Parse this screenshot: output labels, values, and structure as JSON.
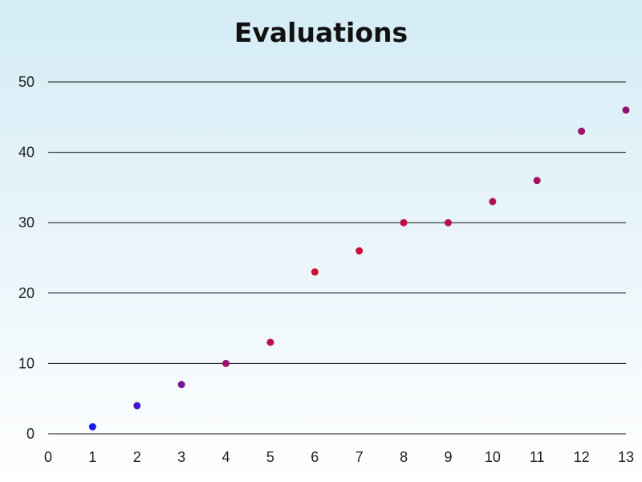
{
  "chart_data": {
    "type": "scatter",
    "title": "Evaluations",
    "xlabel": "",
    "ylabel": "",
    "xlim": [
      0,
      13
    ],
    "ylim": [
      0,
      50
    ],
    "x_ticks": [
      0,
      1,
      2,
      3,
      4,
      5,
      6,
      7,
      8,
      9,
      10,
      11,
      12,
      13
    ],
    "y_ticks": [
      0,
      10,
      20,
      30,
      40,
      50
    ],
    "grid": "horizontal",
    "series": [
      {
        "x": [
          1,
          2,
          3,
          4,
          5,
          6,
          7,
          8,
          9,
          10,
          11,
          12,
          13
        ],
        "y": [
          1,
          4,
          7,
          10,
          13,
          23,
          26,
          30,
          30,
          33,
          36,
          43,
          46
        ],
        "colors": [
          "#1a1ae6",
          "#4416cc",
          "#7a1496",
          "#99126e",
          "#bb1048",
          "#d10e36",
          "#cc0e3c",
          "#c00e46",
          "#b80f4e",
          "#b00f58",
          "#a61062",
          "#9a106a",
          "#920f70"
        ]
      }
    ]
  }
}
